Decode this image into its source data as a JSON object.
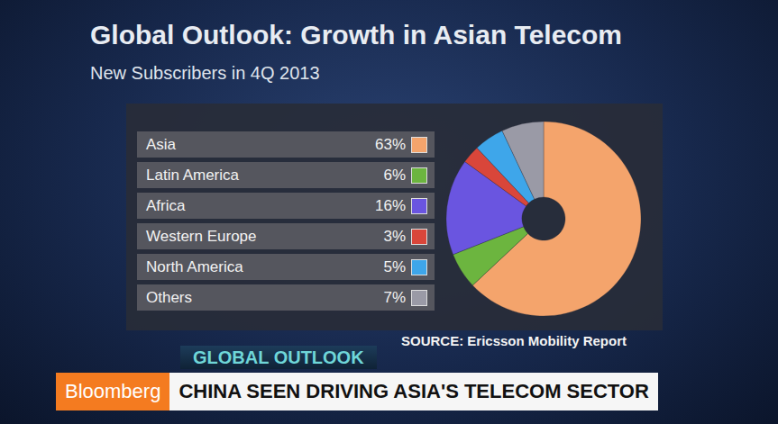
{
  "chart_data": {
    "type": "pie",
    "title": "Global Outlook: Growth in Asian Telecom",
    "subtitle": "New Subscribers in 4Q 2013",
    "categories": [
      "Asia",
      "Latin America",
      "Africa",
      "Western Europe",
      "North America",
      "Others"
    ],
    "values": [
      63,
      6,
      16,
      3,
      5,
      7
    ],
    "value_labels": [
      "63%",
      "6%",
      "16%",
      "3%",
      "5%",
      "7%"
    ],
    "colors": [
      "#f4a46c",
      "#6cb53f",
      "#6a55e0",
      "#d9463a",
      "#3ea6ea",
      "#9a9aa6"
    ],
    "annotations": [
      "SOURCE: Ericsson Mobility Report"
    ]
  },
  "broadcast": {
    "segment": "GLOBAL OUTLOOK",
    "brand": "Bloomberg",
    "headline": "CHINA SEEN DRIVING ASIA'S TELECOM SECTOR"
  }
}
